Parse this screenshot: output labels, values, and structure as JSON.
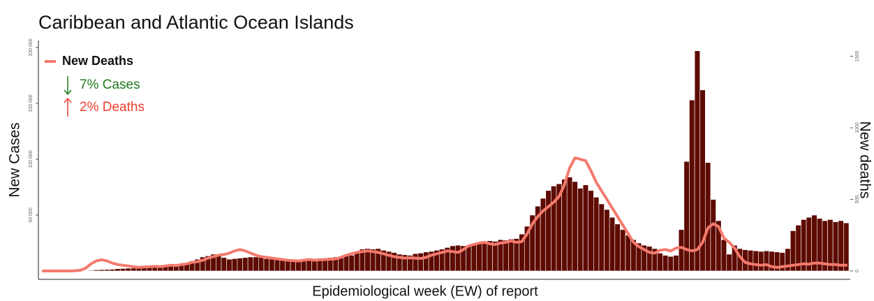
{
  "chart_data": {
    "type": "bar-line",
    "title": "Caribbean and Atlantic Ocean Islands",
    "x_label": "Epidemiological week (EW) of report",
    "y_label": "New Cases",
    "y2_label": "New deaths",
    "ylim": [
      0,
      205000
    ],
    "yticks": [
      {
        "value": 50000,
        "label": "50 000"
      },
      {
        "value": 100000,
        "label": "100 000"
      },
      {
        "value": 150000,
        "label": "150 000"
      },
      {
        "value": 200000,
        "label": "200 000"
      }
    ],
    "y2lim": [
      0,
      1600
    ],
    "y2ticks": [
      0,
      500,
      1000,
      1500
    ],
    "legend": "top-left",
    "series": [
      {
        "type": "bar",
        "color": "#5e0b02",
        "values": [
          0,
          0,
          0,
          0,
          0,
          0,
          0,
          0,
          0,
          600,
          1000,
          1200,
          1300,
          1500,
          2000,
          2200,
          2500,
          2600,
          3000,
          3200,
          3500,
          3800,
          4000,
          5000,
          5500,
          6000,
          6500,
          7500,
          9000,
          10500,
          12500,
          13500,
          15000,
          14000,
          12000,
          10500,
          11000,
          11500,
          12000,
          12500,
          12500,
          12000,
          11000,
          10500,
          10000,
          9500,
          9000,
          9500,
          8500,
          9000,
          10500,
          11000,
          10500,
          11500,
          12000,
          12500,
          13000,
          13500,
          14000,
          16000,
          19500,
          20000,
          19500,
          20000,
          18500,
          17500,
          16500,
          15000,
          14500,
          14000,
          15500,
          16000,
          17000,
          17500,
          18500,
          19500,
          21000,
          22500,
          23000,
          22500,
          23000,
          24000,
          25500,
          26000,
          27000,
          26500,
          28000,
          27500,
          28500,
          29000,
          33000,
          40000,
          50000,
          58000,
          65000,
          72000,
          76000,
          78000,
          82000,
          84000,
          80000,
          74000,
          77000,
          72000,
          66000,
          60000,
          55000,
          48000,
          42000,
          37000,
          32000,
          28000,
          25000,
          23000,
          22000,
          20000,
          16000,
          14000,
          13000,
          14000,
          37000,
          98000,
          153000,
          197000,
          162000,
          97000,
          64000,
          45000,
          28000,
          15000,
          23000,
          20000,
          19000,
          18500,
          18000,
          17500,
          18000,
          17500,
          17000,
          16500,
          20000,
          36000,
          41000,
          46000,
          48000,
          50000,
          47000,
          45000,
          46000,
          44000,
          45000,
          43000
        ]
      },
      {
        "name": "New Deaths",
        "type": "line",
        "axis": "y2",
        "color": "#f47a6e",
        "values": [
          0,
          0,
          0,
          0,
          0,
          0,
          2,
          5,
          20,
          50,
          70,
          78,
          70,
          55,
          45,
          40,
          35,
          30,
          25,
          28,
          30,
          32,
          30,
          35,
          40,
          38,
          45,
          50,
          60,
          65,
          75,
          90,
          100,
          110,
          115,
          125,
          140,
          150,
          140,
          125,
          110,
          100,
          95,
          90,
          85,
          80,
          75,
          72,
          70,
          75,
          80,
          75,
          78,
          80,
          82,
          85,
          95,
          110,
          120,
          130,
          135,
          140,
          135,
          130,
          120,
          110,
          100,
          95,
          90,
          92,
          90,
          88,
          95,
          110,
          120,
          130,
          140,
          135,
          130,
          150,
          175,
          185,
          195,
          200,
          190,
          185,
          195,
          200,
          210,
          200,
          205,
          260,
          330,
          380,
          420,
          450,
          480,
          520,
          600,
          720,
          790,
          780,
          770,
          700,
          620,
          560,
          500,
          440,
          380,
          320,
          260,
          200,
          170,
          150,
          130,
          125,
          145,
          150,
          140,
          160,
          165,
          150,
          140,
          150,
          200,
          300,
          330,
          310,
          230,
          200,
          160,
          100,
          60,
          50,
          45,
          40,
          45,
          30,
          25,
          30,
          35,
          40,
          45,
          50,
          48,
          55,
          55,
          50,
          45,
          45,
          40,
          40
        ]
      }
    ],
    "annotations": [
      {
        "text": "7% Cases",
        "direction": "down",
        "color": "#1f7a1f"
      },
      {
        "text": "2% Deaths",
        "direction": "up",
        "color": "#f03c2e"
      }
    ]
  }
}
